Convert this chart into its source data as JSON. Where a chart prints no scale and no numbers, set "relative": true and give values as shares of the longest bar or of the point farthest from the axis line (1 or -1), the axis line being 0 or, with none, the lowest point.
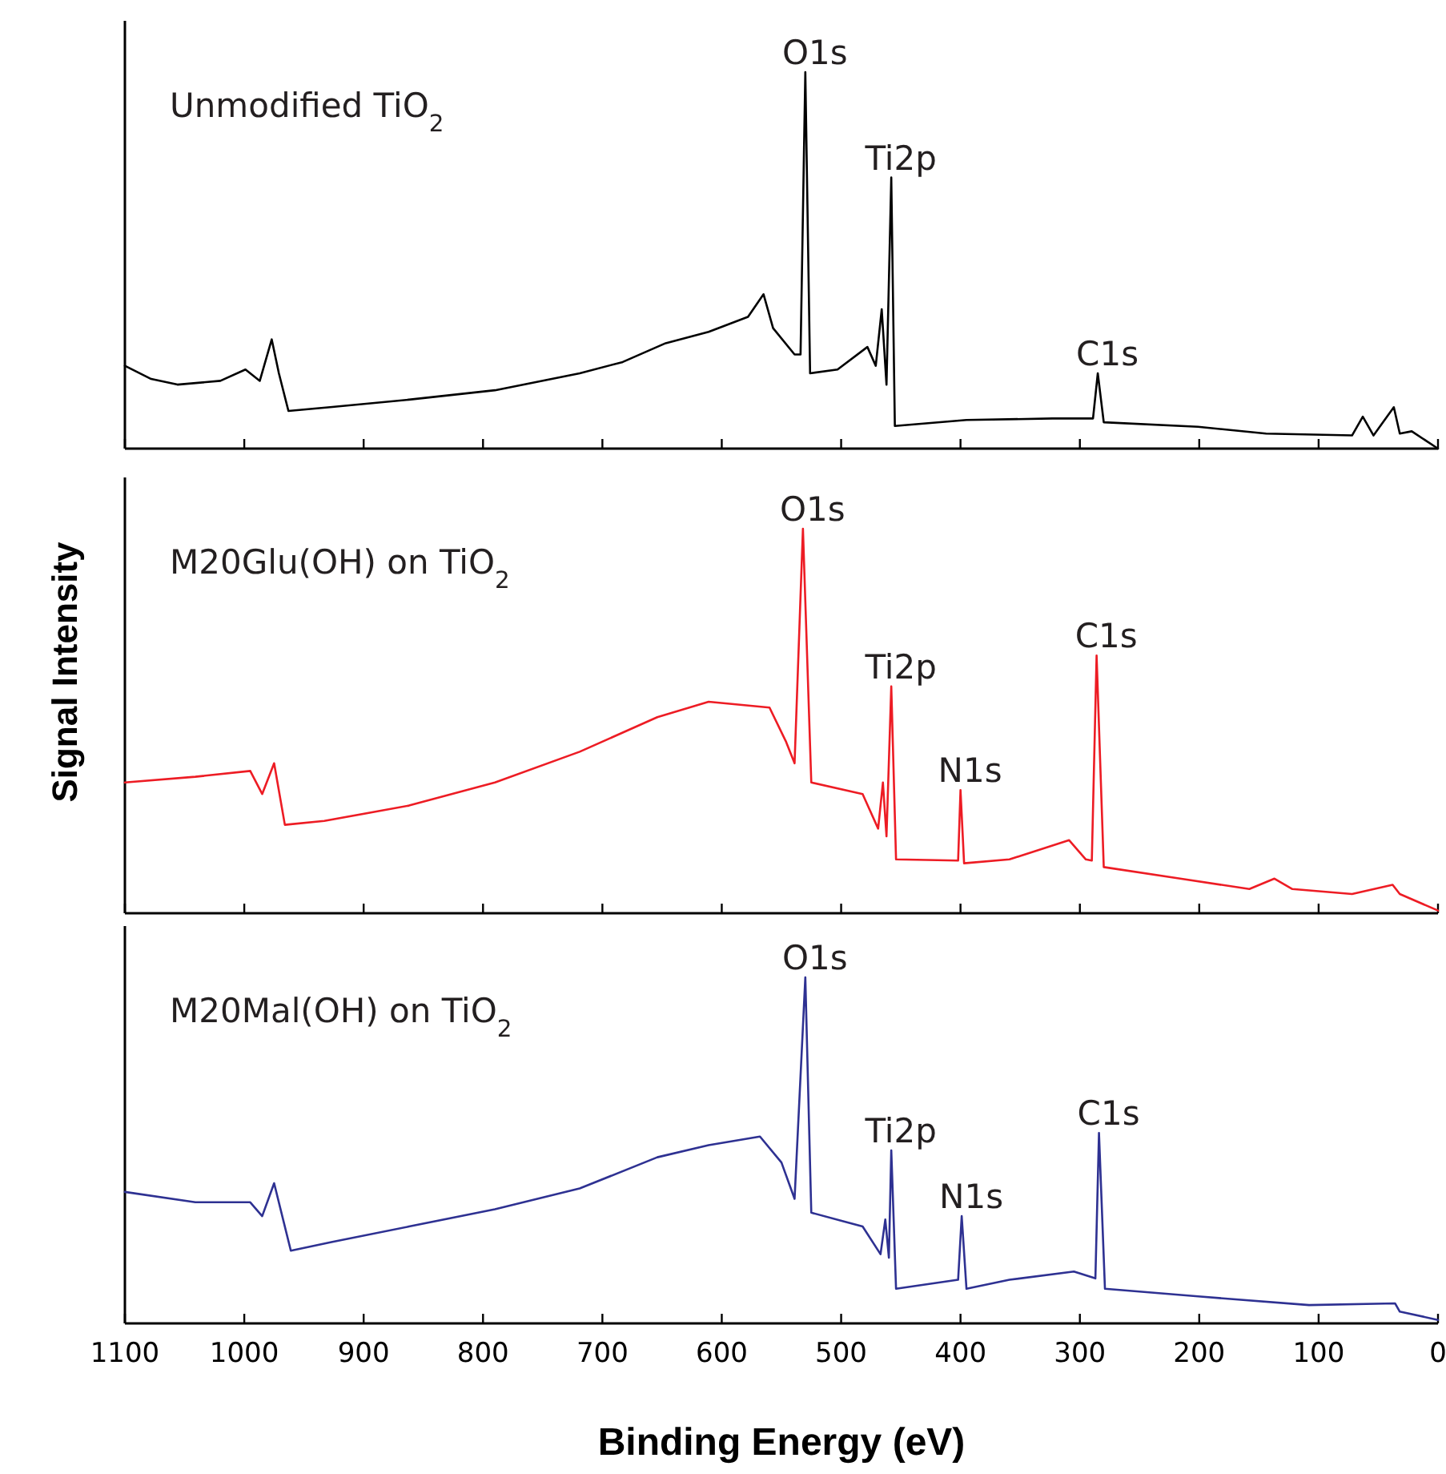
{
  "chart_data": [
    {
      "type": "line",
      "relative": true,
      "xlim": [
        1100,
        0
      ],
      "xticks": [
        1100,
        1000,
        900,
        800,
        700,
        600,
        500,
        400,
        300,
        200,
        100,
        0
      ],
      "tick_labels": false,
      "grid": false,
      "marker": "none",
      "line_style": "solid",
      "annotations": [
        "Unmodified TiO$_{2}$",
        {
          "text": "O1s",
          "x": 530,
          "y": 1.0
        },
        {
          "text": "Ti2p",
          "x": 458,
          "y": 0.72
        },
        {
          "text": "C1s",
          "x": 285,
          "y": 0.2
        }
      ],
      "series": [
        {
          "color": "#000000",
          "x": [
            1100,
            1078,
            1056,
            1020,
            999,
            987,
            977,
            971,
            963,
            928,
            862,
            790,
            719,
            683,
            647,
            611,
            578,
            565,
            557,
            539,
            534,
            530,
            526,
            503,
            478,
            471,
            466,
            462,
            458,
            455,
            395,
            323,
            289,
            285,
            280,
            201,
            144,
            72,
            63,
            54,
            37,
            32,
            22,
            0
          ],
          "values": [
            0.22,
            0.185,
            0.17,
            0.18,
            0.21,
            0.18,
            0.29,
            0.2,
            0.1,
            0.11,
            0.13,
            0.155,
            0.2,
            0.23,
            0.28,
            0.31,
            0.35,
            0.41,
            0.32,
            0.25,
            0.25,
            1.0,
            0.2,
            0.21,
            0.27,
            0.22,
            0.37,
            0.17,
            0.72,
            0.06,
            0.076,
            0.08,
            0.08,
            0.2,
            0.07,
            0.058,
            0.04,
            0.035,
            0.085,
            0.035,
            0.11,
            0.04,
            0.046,
            0
          ]
        }
      ]
    },
    {
      "type": "line",
      "relative": true,
      "xlim": [
        1100,
        0
      ],
      "xticks": [
        1100,
        1000,
        900,
        800,
        700,
        600,
        500,
        400,
        300,
        200,
        100,
        0
      ],
      "tick_labels": false,
      "grid": false,
      "marker": "none",
      "line_style": "solid",
      "ylabel": "Signal Intensity",
      "annotations": [
        "M20Glu(OH) on TiO$_{2}$",
        {
          "text": "O1s",
          "x": 532,
          "y": 1.0
        },
        {
          "text": "Ti2p",
          "x": 458,
          "y": 0.59
        },
        {
          "text": "N1s",
          "x": 400,
          "y": 0.32
        },
        {
          "text": "C1s",
          "x": 286,
          "y": 0.67
        }
      ],
      "series": [
        {
          "color": "#ed1c24",
          "x": [
            1100,
            1041,
            995,
            985,
            975,
            966,
            933,
            862,
            790,
            719,
            654,
            611,
            560,
            546,
            539,
            532,
            525,
            482,
            469,
            465,
            462,
            458,
            454,
            402,
            400,
            397,
            359,
            309,
            295,
            290,
            286,
            280,
            216,
            158,
            137,
            122,
            72,
            38,
            32,
            0
          ],
          "values": [
            0.34,
            0.355,
            0.37,
            0.31,
            0.39,
            0.23,
            0.24,
            0.28,
            0.34,
            0.42,
            0.51,
            0.55,
            0.535,
            0.445,
            0.39,
            1.0,
            0.34,
            0.31,
            0.22,
            0.34,
            0.2,
            0.59,
            0.14,
            0.137,
            0.32,
            0.13,
            0.14,
            0.19,
            0.14,
            0.137,
            0.67,
            0.12,
            0.09,
            0.063,
            0.09,
            0.063,
            0.05,
            0.074,
            0.05,
            0.007
          ]
        }
      ]
    },
    {
      "type": "line",
      "relative": true,
      "xlim": [
        1100,
        0
      ],
      "xticks": [
        1100,
        1000,
        900,
        800,
        700,
        600,
        500,
        400,
        300,
        200,
        100,
        0
      ],
      "grid": false,
      "marker": "none",
      "line_style": "solid",
      "xlabel": "Binding Energy (eV)",
      "annotations": [
        "M20Mal(OH) on TiO$_{2}$",
        {
          "text": "O1s",
          "x": 530,
          "y": 1.0
        },
        {
          "text": "Ti2p",
          "x": 458,
          "y": 0.5
        },
        {
          "text": "N1s",
          "x": 399,
          "y": 0.31
        },
        {
          "text": "C1s",
          "x": 284,
          "y": 0.55
        }
      ],
      "series": [
        {
          "color": "#2e3192",
          "x": [
            1100,
            1041,
            995,
            985,
            975,
            961,
            927,
            862,
            790,
            719,
            654,
            611,
            568,
            550,
            539,
            530,
            525,
            482,
            467,
            463,
            460,
            458,
            454,
            402,
            399,
            395,
            359,
            305,
            287,
            284,
            279,
            201,
            108,
            36,
            32,
            0
          ],
          "values": [
            0.38,
            0.35,
            0.35,
            0.31,
            0.405,
            0.21,
            0.235,
            0.28,
            0.33,
            0.39,
            0.48,
            0.515,
            0.54,
            0.465,
            0.36,
            1.0,
            0.32,
            0.28,
            0.2,
            0.3,
            0.19,
            0.5,
            0.1,
            0.126,
            0.31,
            0.1,
            0.126,
            0.15,
            0.13,
            0.55,
            0.1,
            0.078,
            0.053,
            0.058,
            0.034,
            0.01
          ]
        }
      ]
    }
  ]
}
